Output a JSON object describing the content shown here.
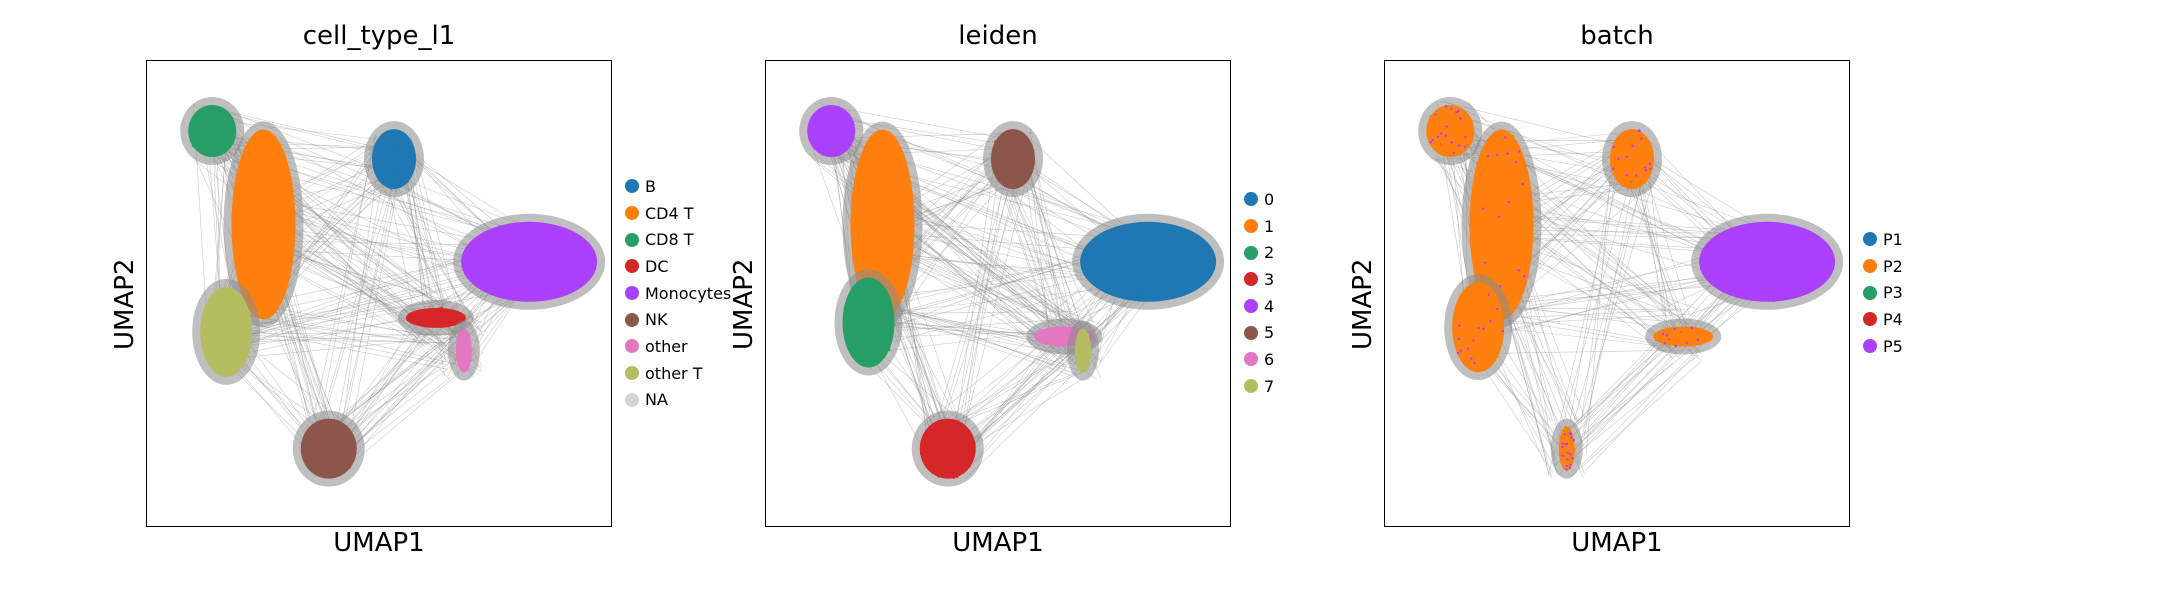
{
  "chart_data": [
    {
      "type": "scatter",
      "title": "cell_type_l1",
      "xlabel": "UMAP1",
      "ylabel": "UMAP2",
      "ticks": "none",
      "grid": false,
      "legend_position": "right",
      "legend": [
        {
          "label": "B",
          "color": "#1f77b4"
        },
        {
          "label": "CD4 T",
          "color": "#ff7f0e"
        },
        {
          "label": "CD8 T",
          "color": "#279e68"
        },
        {
          "label": "DC",
          "color": "#d62728"
        },
        {
          "label": "Monocytes",
          "color": "#aa40fc"
        },
        {
          "label": "NK",
          "color": "#8c564b"
        },
        {
          "label": "other",
          "color": "#e377c2"
        },
        {
          "label": "other T",
          "color": "#b5bd61"
        },
        {
          "label": "NA",
          "color": "#d3d3d3"
        }
      ],
      "clusters": [
        {
          "group": "CD8 T",
          "x": 0.14,
          "y": 0.85
        },
        {
          "group": "B",
          "x": 0.53,
          "y": 0.79
        },
        {
          "group": "CD4 T",
          "x": 0.25,
          "y": 0.65
        },
        {
          "group": "Monocytes",
          "x": 0.82,
          "y": 0.57
        },
        {
          "group": "other T",
          "x": 0.17,
          "y": 0.42
        },
        {
          "group": "DC",
          "x": 0.62,
          "y": 0.45
        },
        {
          "group": "other",
          "x": 0.68,
          "y": 0.38
        },
        {
          "group": "NK",
          "x": 0.39,
          "y": 0.17
        }
      ]
    },
    {
      "type": "scatter",
      "title": "leiden",
      "xlabel": "UMAP1",
      "ylabel": "UMAP2",
      "ticks": "none",
      "grid": false,
      "legend_position": "right",
      "legend": [
        {
          "label": "0",
          "color": "#1f77b4"
        },
        {
          "label": "1",
          "color": "#ff7f0e"
        },
        {
          "label": "2",
          "color": "#279e68"
        },
        {
          "label": "3",
          "color": "#d62728"
        },
        {
          "label": "4",
          "color": "#aa40fc"
        },
        {
          "label": "5",
          "color": "#8c564b"
        },
        {
          "label": "6",
          "color": "#e377c2"
        },
        {
          "label": "7",
          "color": "#b5bd61"
        }
      ],
      "clusters": [
        {
          "group": "4",
          "x": 0.14,
          "y": 0.85
        },
        {
          "group": "5",
          "x": 0.53,
          "y": 0.79
        },
        {
          "group": "1",
          "x": 0.25,
          "y": 0.65
        },
        {
          "group": "0",
          "x": 0.82,
          "y": 0.57
        },
        {
          "group": "2",
          "x": 0.22,
          "y": 0.44
        },
        {
          "group": "6",
          "x": 0.64,
          "y": 0.41
        },
        {
          "group": "7",
          "x": 0.68,
          "y": 0.38
        },
        {
          "group": "3",
          "x": 0.39,
          "y": 0.17
        }
      ]
    },
    {
      "type": "scatter",
      "title": "batch",
      "xlabel": "UMAP1",
      "ylabel": "UMAP2",
      "ticks": "none",
      "grid": false,
      "legend_position": "right",
      "legend": [
        {
          "label": "P1",
          "color": "#1f77b4"
        },
        {
          "label": "P2",
          "color": "#ff7f0e"
        },
        {
          "label": "P3",
          "color": "#279e68"
        },
        {
          "label": "P4",
          "color": "#d62728"
        },
        {
          "label": "P5",
          "color": "#aa40fc"
        }
      ],
      "clusters": [
        {
          "group": "P2",
          "x": 0.14,
          "y": 0.85
        },
        {
          "group": "P2",
          "x": 0.53,
          "y": 0.79
        },
        {
          "group": "P2",
          "x": 0.25,
          "y": 0.65
        },
        {
          "group": "P5",
          "x": 0.82,
          "y": 0.57
        },
        {
          "group": "P2",
          "x": 0.2,
          "y": 0.43
        },
        {
          "group": "P2",
          "x": 0.64,
          "y": 0.41
        },
        {
          "group": "P2",
          "x": 0.39,
          "y": 0.17
        }
      ]
    }
  ]
}
